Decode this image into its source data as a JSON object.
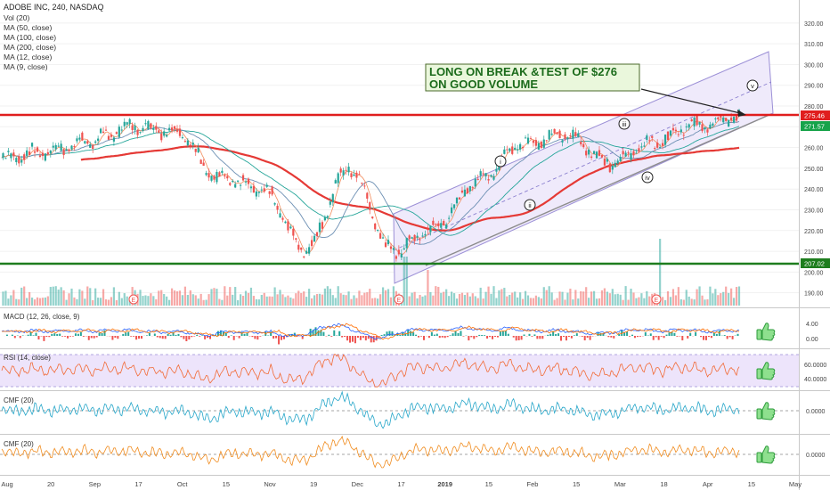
{
  "header": {
    "symbol": "ADOBE INC, 240, NASDAQ",
    "indicators": [
      "Vol (20)",
      "MA (50, close)",
      "MA (100, close)",
      "MA (200, close)",
      "MA (12, close)",
      "MA (9, close)"
    ]
  },
  "annotation": {
    "line1": "LONG ON BREAK &TEST OF $276",
    "line2": "ON GOOD VOLUME"
  },
  "price_flags": {
    "resistance": "275.46",
    "current": "271.57",
    "support": "207.02"
  },
  "waves": [
    "i",
    "ii",
    "iii",
    "iv",
    "v"
  ],
  "earnings_marker": "E",
  "pane_labels": {
    "macd": "MACD (12, 26, close, 9)",
    "rsi": "RSI (14, close)",
    "cmf1": "CMF (20)",
    "cmf2": "CMF (20)"
  },
  "colors": {
    "resistance": "#e01e1e",
    "support": "#1e7d1e",
    "bull": "#26a69a",
    "bear": "#ef5350",
    "channel": "#9b8fd6",
    "ma200": "#e53935",
    "rsi_bg": "#ede4fb"
  },
  "icons": [
    "thumbs-up-icon",
    "thumbs-up-icon",
    "thumbs-up-icon",
    "thumbs-up-icon"
  ],
  "chart_data": {
    "type": "line",
    "title": "ADOBE INC, 240, NASDAQ",
    "x": [
      "Aug",
      "Aug 20",
      "Sep",
      "Sep 17",
      "Oct",
      "Oct 15",
      "Nov",
      "Nov 19",
      "Dec",
      "Dec 17",
      "Jan 2019",
      "Jan 15",
      "Feb",
      "Feb 15",
      "Mar",
      "Mar 18",
      "Apr",
      "Apr 15"
    ],
    "series": [
      {
        "values": [
          255,
          258,
          263,
          270,
          268,
          245,
          240,
          211,
          250,
          210,
          222,
          245,
          262,
          266,
          253,
          262,
          271,
          275
        ]
      }
    ],
    "price_ticks": [
      "320.00",
      "310.00",
      "300.00",
      "290.00",
      "280.00",
      "270.00",
      "260.00",
      "250.00",
      "240.00",
      "230.00",
      "220.00",
      "210.00",
      "200.00",
      "190.00"
    ],
    "ylim": [
      186,
      326
    ],
    "resistance_level": 275.46,
    "support_level": 207.02,
    "last_price": 271.57,
    "xaxis_ticks": [
      "Aug",
      "20",
      "Sep",
      "17",
      "Oct",
      "15",
      "Nov",
      "19",
      "Dec",
      "17",
      "2019",
      "15",
      "Feb",
      "15",
      "Mar",
      "18",
      "Apr",
      "15",
      "May"
    ],
    "macd_ticks": [
      "4.00",
      "0.00"
    ],
    "rsi_ticks": [
      "60.0000",
      "40.0000"
    ],
    "cmf_ticks": [
      "0.0000",
      "0.0000"
    ]
  }
}
